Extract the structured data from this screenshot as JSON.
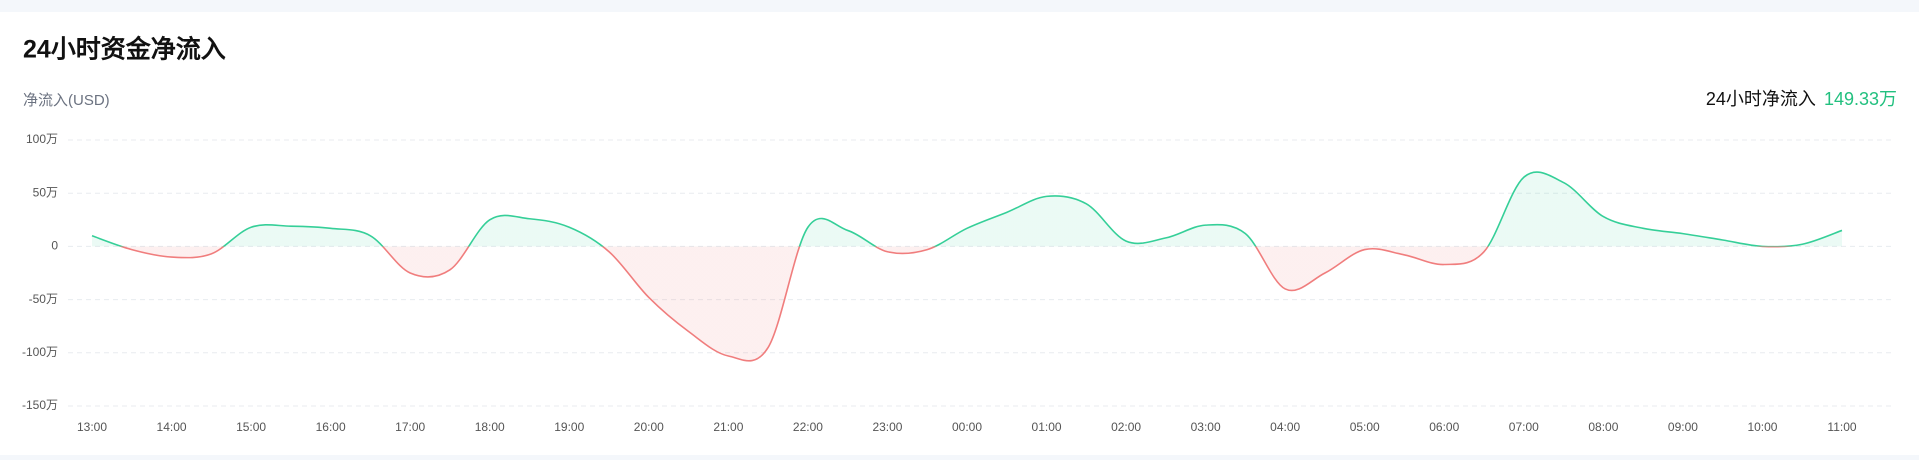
{
  "chart_data": {
    "type": "line",
    "title": "24小时资金净流入",
    "y_axis_label": "净流入(USD)",
    "summary_label": "24小时净流入",
    "summary_value": "149.33万",
    "categories": [
      "13:00",
      null,
      "14:00",
      null,
      "15:00",
      null,
      "16:00",
      null,
      "17:00",
      null,
      "18:00",
      null,
      "19:00",
      null,
      "20:00",
      null,
      "21:00",
      null,
      "22:00",
      null,
      "23:00",
      null,
      "00:00",
      null,
      "01:00",
      null,
      "02:00",
      null,
      "03:00",
      null,
      "04:00",
      null,
      "05:00",
      null,
      "06:00",
      null,
      "07:00",
      null,
      "08:00",
      null,
      "09:00",
      null,
      "10:00",
      null,
      "11:00"
    ],
    "series": [
      {
        "name": "净流入",
        "color": "#35cf98",
        "negative_color": "#f07d7d",
        "values": [
          10,
          -3,
          -10,
          -7,
          18,
          19,
          17,
          10,
          -25,
          -22,
          25,
          26,
          18,
          -5,
          -48,
          -80,
          -103,
          -95,
          18,
          15,
          -5,
          -3,
          17,
          32,
          47,
          40,
          5,
          8,
          20,
          12,
          -40,
          -25,
          -3,
          -8,
          -17,
          -5,
          65,
          60,
          28,
          17,
          12,
          6,
          0,
          2,
          15
        ]
      }
    ],
    "ylim": [
      -150,
      100
    ],
    "yticks": [
      {
        "value": -150,
        "label": "-150万"
      },
      {
        "value": -100,
        "label": "-100万"
      },
      {
        "value": -50,
        "label": "-50万"
      },
      0,
      {
        "value": 50,
        "label": "50万"
      },
      {
        "value": 100,
        "label": "100万"
      }
    ],
    "grid": true
  }
}
